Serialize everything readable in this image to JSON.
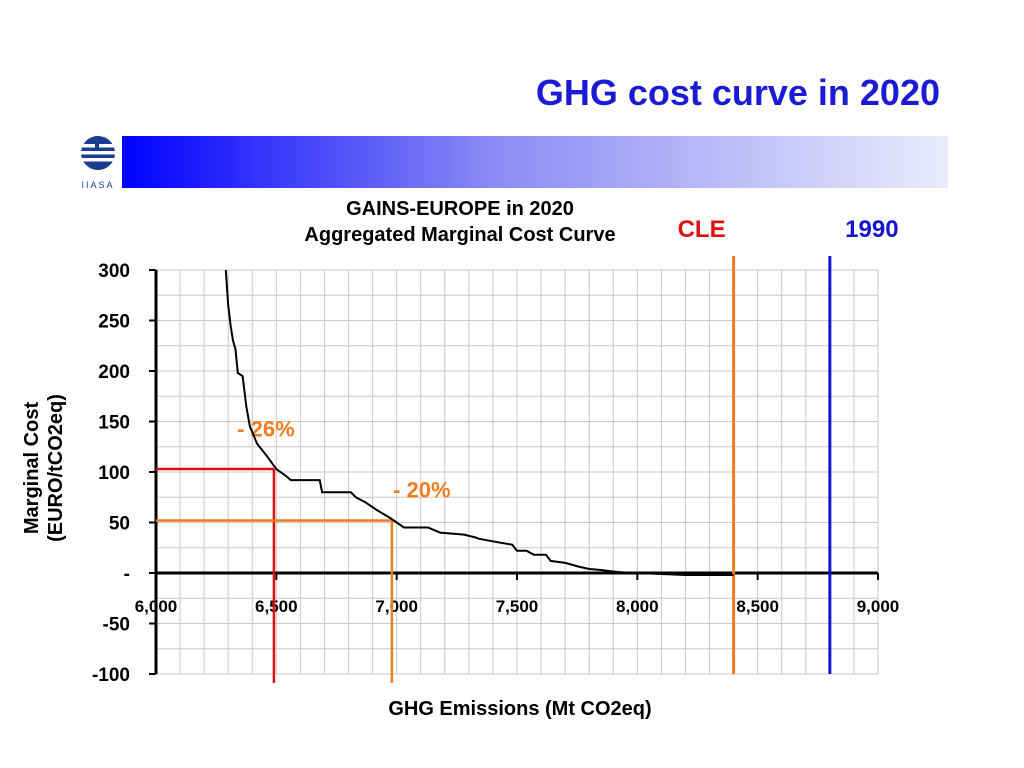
{
  "slide": {
    "title": "GHG cost curve in 2020",
    "logo_text": "IIASA"
  },
  "colors": {
    "title": "#1b1bd6",
    "cle_line": "#f07c1e",
    "cle_label": "#e01010",
    "baseline_1990": "#1414d0",
    "reduction_26": "#e01010",
    "reduction_20": "#f07c1e",
    "annotation": "#f07c1e",
    "curve": "#000000"
  },
  "chart_data": {
    "type": "line",
    "title": "GAINS-EUROPE in 2020\nAggregated Marginal Cost Curve",
    "title_lines": [
      "GAINS-EUROPE in 2020",
      "Aggregated Marginal Cost Curve"
    ],
    "xlabel": "GHG Emissions (Mt CO2eq)",
    "ylabel": "Marginal Cost\n(EURO/tCO2eq)",
    "ylabel_lines": [
      "Marginal Cost",
      "(EURO/tCO2eq)"
    ],
    "xlim": [
      6000,
      9000
    ],
    "ylim": [
      -100,
      300
    ],
    "grid": true,
    "x_ticks": [
      6000,
      6500,
      7000,
      7500,
      8000,
      8500,
      9000
    ],
    "x_tick_labels": [
      "6,000",
      "6,500",
      "7,000",
      "7,500",
      "8,000",
      "8,500",
      "9,000"
    ],
    "y_ticks": [
      300,
      250,
      200,
      150,
      100,
      50,
      0,
      -50,
      -100
    ],
    "y_tick_labels": [
      "300",
      "250",
      "200",
      "150",
      "100",
      "50",
      "-",
      "-50",
      "-100"
    ],
    "series": [
      {
        "x": [
          6290,
          6300,
          6310,
          6320,
          6330,
          6340,
          6360,
          6375,
          6390,
          6420,
          6460,
          6500,
          6540,
          6560,
          6680,
          6690,
          6810,
          6830,
          6870,
          6920,
          6970,
          7000,
          7030,
          7130,
          7180,
          7280,
          7330,
          7340,
          7430,
          7480,
          7500,
          7540,
          7570,
          7620,
          7640,
          7700,
          7730,
          7760,
          7800,
          7850,
          7880,
          7920,
          7950,
          8000,
          8100,
          8200,
          8300,
          8400
        ],
        "y": [
          300,
          265,
          245,
          230,
          222,
          198,
          195,
          165,
          145,
          128,
          116,
          103,
          96,
          92,
          92,
          80,
          80,
          75,
          70,
          62,
          55,
          50,
          45,
          45,
          40,
          38,
          35,
          34,
          30,
          28,
          22,
          22,
          18,
          18,
          12,
          10,
          8,
          6,
          4,
          3,
          2,
          1,
          0.5,
          0,
          -1,
          -2,
          -2,
          -2
        ]
      }
    ],
    "reference_lines": [
      {
        "label": "CLE",
        "x": 8400
      },
      {
        "label": "1990",
        "x": 8800
      }
    ],
    "reduction_markers": [
      {
        "label": "- 26%",
        "x": 6490,
        "y": 103
      },
      {
        "label": "- 20%",
        "x": 6980,
        "y": 52
      }
    ]
  }
}
